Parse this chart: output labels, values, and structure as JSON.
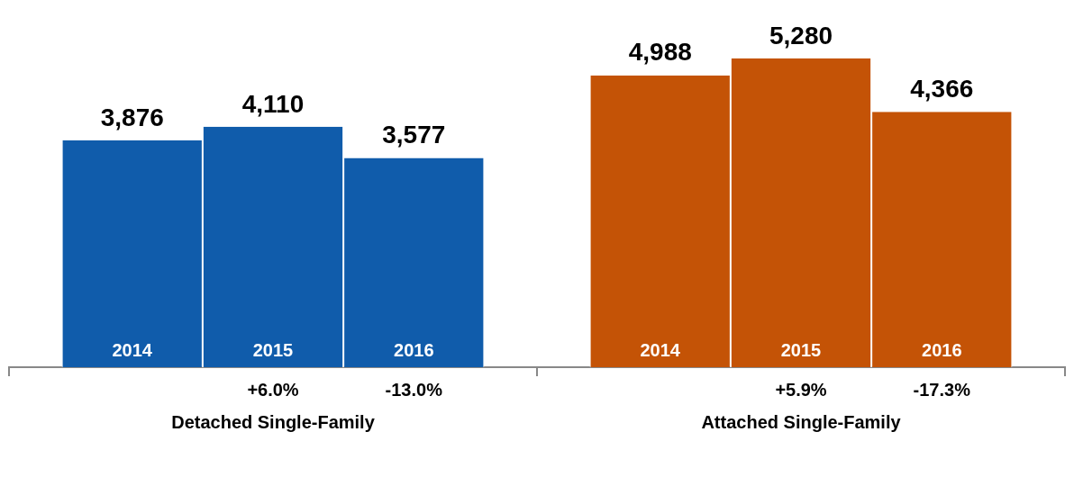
{
  "chart_data": {
    "type": "bar",
    "categories": [
      "Detached Single-Family",
      "Attached Single-Family"
    ],
    "series": [
      {
        "name": "2014",
        "colors": [
          "#105cab",
          "#c45306"
        ],
        "values": [
          3876,
          4988
        ],
        "value_labels": [
          "3,876",
          "4,988"
        ]
      },
      {
        "name": "2015",
        "colors": [
          "#105cab",
          "#c45306"
        ],
        "values": [
          4110,
          5280
        ],
        "value_labels": [
          "4,110",
          "5,280"
        ]
      },
      {
        "name": "2016",
        "colors": [
          "#105cab",
          "#c45306"
        ],
        "values": [
          3577,
          4366
        ],
        "value_labels": [
          "3,577",
          "4,366"
        ]
      }
    ],
    "legend": false,
    "annotations": [
      "+6.0%",
      "-13.0%",
      "+5.9%",
      "-17.3%"
    ]
  }
}
